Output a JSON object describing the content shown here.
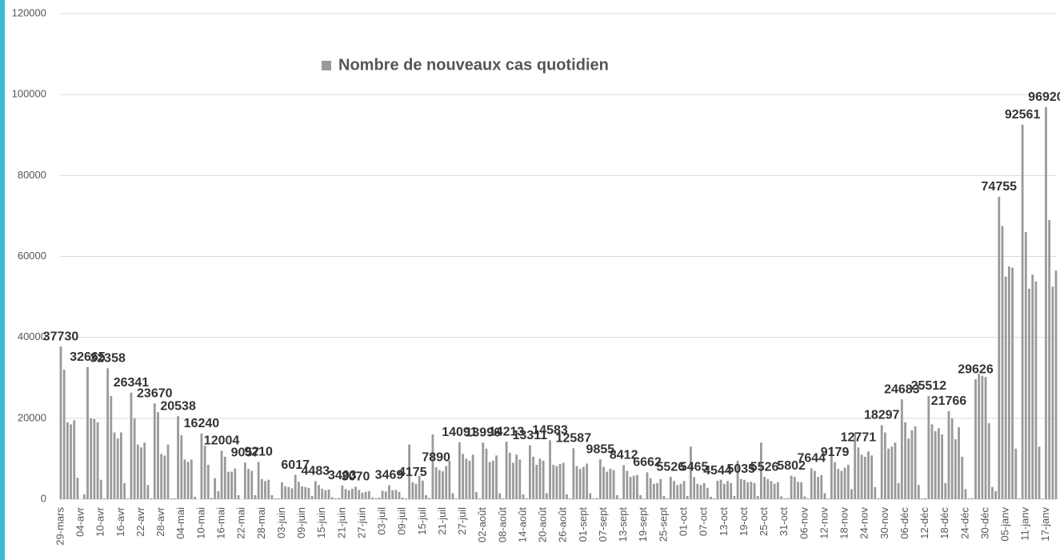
{
  "chart_data": {
    "type": "bar",
    "categories": [
      "29-mars",
      null,
      null,
      null,
      null,
      null,
      "04-avr",
      null,
      null,
      null,
      null,
      null,
      "10-avr",
      null,
      null,
      null,
      null,
      null,
      "16-avr",
      null,
      null,
      null,
      null,
      null,
      "22-avr",
      null,
      null,
      null,
      null,
      null,
      "28-avr",
      null,
      null,
      null,
      null,
      null,
      "04-mai",
      null,
      null,
      null,
      null,
      null,
      "10-mai",
      null,
      null,
      null,
      null,
      null,
      "16-mai",
      null,
      null,
      null,
      null,
      null,
      "22-mai",
      null,
      null,
      null,
      null,
      null,
      "28-mai",
      null,
      null,
      null,
      null,
      null,
      "03-juin",
      null,
      null,
      null,
      null,
      null,
      "09-juin",
      null,
      null,
      null,
      null,
      null,
      "15-juin",
      null,
      null,
      null,
      null,
      null,
      "21-juin",
      null,
      null,
      null,
      null,
      null,
      "27-juin",
      null,
      null,
      null,
      null,
      null,
      "03-juil",
      null,
      null,
      null,
      null,
      null,
      "09-juil",
      null,
      null,
      null,
      null,
      null,
      "15-juil",
      null,
      null,
      null,
      null,
      null,
      "21-juil",
      null,
      null,
      null,
      null,
      null,
      "27-juil",
      null,
      null,
      null,
      null,
      null,
      "02-août",
      null,
      null,
      null,
      null,
      null,
      "08-août",
      null,
      null,
      null,
      null,
      null,
      "14-août",
      null,
      null,
      null,
      null,
      null,
      "20-août",
      null,
      null,
      null,
      null,
      null,
      "26-août",
      null,
      null,
      null,
      null,
      null,
      "01-sept",
      null,
      null,
      null,
      null,
      null,
      "07-sept",
      null,
      null,
      null,
      null,
      null,
      "13-sept",
      null,
      null,
      null,
      null,
      null,
      "19-sept",
      null,
      null,
      null,
      null,
      null,
      "25-sept",
      null,
      null,
      null,
      null,
      null,
      "01-oct",
      null,
      null,
      null,
      null,
      null,
      "07-oct",
      null,
      null,
      null,
      null,
      null,
      "13-oct",
      null,
      null,
      null,
      null,
      null,
      "19-oct",
      null,
      null,
      null,
      null,
      null,
      "25-oct",
      null,
      null,
      null,
      null,
      null,
      "31-oct",
      null,
      null,
      null,
      null,
      null,
      "06-nov",
      null,
      null,
      null,
      null,
      null,
      "12-nov",
      null,
      null,
      null,
      null,
      null,
      "18-nov",
      null,
      null,
      null,
      null,
      null,
      "24-nov",
      null,
      null,
      null,
      null,
      null,
      "30-nov",
      null,
      null,
      null,
      null,
      null,
      "06-déc",
      null,
      null,
      null,
      null,
      null,
      "12-déc",
      null,
      null,
      null,
      null,
      null,
      "18-déc",
      null,
      null,
      null,
      null,
      null,
      "24-déc",
      null,
      null,
      null,
      null,
      null,
      "30-déc",
      null,
      null,
      null,
      null,
      null,
      "05-janv",
      null,
      null,
      null,
      null,
      null,
      "11-janv",
      null,
      null,
      null,
      null,
      null,
      "17-janv",
      null,
      null,
      null
    ],
    "series": [
      {
        "name": "Nombre de nouveaux cas quotidien",
        "color": "#9a9a9a",
        "values": [
          37730,
          32000,
          19000,
          18500,
          19500,
          5300,
          0,
          1200,
          32665,
          20000,
          19800,
          19000,
          4800,
          200,
          32358,
          25500,
          16500,
          15000,
          16500,
          4000,
          200,
          26341,
          20000,
          13500,
          12800,
          14000,
          3500,
          200,
          23670,
          21500,
          11200,
          10800,
          13500,
          200,
          200,
          20538,
          15800,
          9800,
          9200,
          9800,
          600,
          0,
          16240,
          13200,
          8500,
          300,
          5200,
          2000,
          12004,
          10500,
          6800,
          6800,
          7600,
          1000,
          0,
          9057,
          7500,
          7000,
          1000,
          9210,
          5000,
          4500,
          4800,
          1000,
          200,
          200,
          4200,
          3200,
          3000,
          2700,
          6017,
          4300,
          3200,
          3000,
          2800,
          800,
          4483,
          3500,
          2600,
          2200,
          2400,
          500,
          200,
          300,
          3403,
          2500,
          2200,
          2600,
          3070,
          2300,
          1600,
          1800,
          2000,
          400,
          200,
          400,
          2100,
          1900,
          3469,
          2200,
          2300,
          1800,
          400,
          200,
          13500,
          4175,
          3800,
          5800,
          4600,
          1000,
          300,
          16000,
          7890,
          7200,
          6900,
          8200,
          9500,
          1500,
          200,
          14091,
          11200,
          10000,
          9500,
          11000,
          1800,
          200,
          13996,
          12500,
          9200,
          9500,
          10800,
          1500,
          200,
          14213,
          11500,
          9000,
          11000,
          9800,
          1200,
          200,
          13311,
          10500,
          8500,
          10000,
          9500,
          1500,
          14583,
          8500,
          8200,
          8700,
          9000,
          1200,
          200,
          12587,
          8200,
          7500,
          8000,
          8800,
          1500,
          200,
          300,
          9855,
          8000,
          6800,
          7500,
          7200,
          1000,
          200,
          8412,
          7000,
          5500,
          5800,
          6000,
          1000,
          200,
          6662,
          5200,
          3800,
          4000,
          5000,
          800,
          200,
          5526,
          4500,
          3500,
          3800,
          4500,
          800,
          13000,
          5465,
          3800,
          3500,
          4000,
          2800,
          600,
          200,
          4544,
          4800,
          3800,
          4500,
          4000,
          800,
          9500,
          5035,
          4800,
          4200,
          4300,
          4000,
          800,
          14000,
          5526,
          5000,
          4500,
          3800,
          4200,
          700,
          200,
          300,
          5802,
          5500,
          4300,
          4200,
          700,
          200,
          7644,
          7000,
          5500,
          6000,
          1500,
          200,
          13000,
          9179,
          7500,
          7000,
          7800,
          8500,
          2500,
          16500,
          12771,
          11000,
          10500,
          11800,
          10800,
          3000,
          200,
          18297,
          16500,
          12500,
          13000,
          14000,
          4000,
          24683,
          19000,
          15000,
          17000,
          18000,
          3500,
          200,
          300,
          25512,
          18500,
          16800,
          17500,
          16000,
          4000,
          21766,
          20000,
          14800,
          17800,
          10500,
          2500,
          200,
          300,
          29626,
          31000,
          30500,
          30200,
          18800,
          3000,
          2000,
          74755,
          67500,
          55000,
          57500,
          57200,
          12500,
          200,
          92561,
          66000,
          52000,
          55500,
          53800,
          13000,
          200,
          96920,
          69000,
          52500,
          56500
        ],
        "value_labels": [
          "37730",
          null,
          null,
          null,
          null,
          null,
          null,
          null,
          "32665",
          null,
          null,
          null,
          null,
          null,
          "32358",
          null,
          null,
          null,
          null,
          null,
          null,
          "26341",
          null,
          null,
          null,
          null,
          null,
          null,
          "23670",
          null,
          null,
          null,
          null,
          null,
          null,
          "20538",
          null,
          null,
          null,
          null,
          null,
          null,
          "16240",
          null,
          null,
          null,
          null,
          null,
          "12004",
          null,
          null,
          null,
          null,
          null,
          null,
          "9057",
          null,
          null,
          null,
          "9210",
          null,
          null,
          null,
          null,
          null,
          null,
          null,
          null,
          null,
          null,
          "6017",
          null,
          null,
          null,
          null,
          null,
          "4483",
          null,
          null,
          null,
          null,
          null,
          null,
          null,
          "3403",
          null,
          null,
          null,
          "3070",
          null,
          null,
          null,
          null,
          null,
          null,
          null,
          null,
          null,
          "3469",
          null,
          null,
          null,
          null,
          null,
          null,
          "4175",
          null,
          null,
          null,
          null,
          null,
          null,
          "7890",
          null,
          null,
          null,
          null,
          null,
          null,
          "14091",
          null,
          null,
          null,
          null,
          null,
          null,
          "13996",
          null,
          null,
          null,
          null,
          null,
          null,
          "14213",
          null,
          null,
          null,
          null,
          null,
          null,
          "13311",
          null,
          null,
          null,
          null,
          null,
          "14583",
          null,
          null,
          null,
          null,
          null,
          null,
          "12587",
          null,
          null,
          null,
          null,
          null,
          null,
          null,
          "9855",
          null,
          null,
          null,
          null,
          null,
          null,
          "8412",
          null,
          null,
          null,
          null,
          null,
          null,
          "6662",
          null,
          null,
          null,
          null,
          null,
          null,
          "5526",
          null,
          null,
          null,
          null,
          null,
          null,
          "5465",
          null,
          null,
          null,
          null,
          null,
          null,
          "4544",
          null,
          null,
          null,
          null,
          null,
          null,
          "5035",
          null,
          null,
          null,
          null,
          null,
          null,
          "5526",
          null,
          null,
          null,
          null,
          null,
          null,
          null,
          "5802",
          null,
          null,
          null,
          null,
          null,
          "7644",
          null,
          null,
          null,
          null,
          null,
          null,
          "9179",
          null,
          null,
          null,
          null,
          null,
          null,
          "12771",
          null,
          null,
          null,
          null,
          null,
          null,
          "18297",
          null,
          null,
          null,
          null,
          null,
          "24683",
          null,
          null,
          null,
          null,
          null,
          null,
          null,
          "25512",
          null,
          null,
          null,
          null,
          null,
          "21766",
          null,
          null,
          null,
          null,
          null,
          null,
          null,
          "29626",
          null,
          null,
          null,
          null,
          null,
          null,
          "74755",
          null,
          null,
          null,
          null,
          null,
          null,
          "92561",
          null,
          null,
          null,
          null,
          null,
          null,
          "96920",
          null,
          null,
          null
        ]
      }
    ],
    "ylim": [
      0,
      120000
    ],
    "yticks": [
      0,
      20000,
      40000,
      60000,
      80000,
      100000,
      120000
    ],
    "grid": true
  }
}
